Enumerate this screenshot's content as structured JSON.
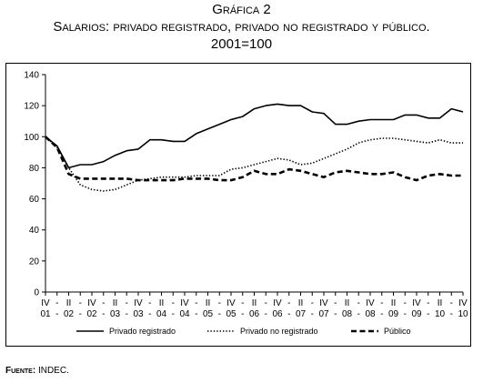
{
  "figure": {
    "title": "Gráfica 2",
    "subtitle": "Salarios: privado registrado, privado no registrado y público.",
    "base": "2001=100",
    "source_label": "Fuente:",
    "source_value": "INDEC."
  },
  "chart_data": {
    "type": "line",
    "title": "Gráfica 2",
    "subtitle": "Salarios: privado registrado, privado no registrado y público.",
    "ylim": [
      0,
      140
    ],
    "yticks": [
      0,
      20,
      40,
      60,
      80,
      100,
      120,
      140
    ],
    "grid": false,
    "legend_position": "bottom",
    "xtick_labels": [
      {
        "q": "IV",
        "y": "01"
      },
      {
        "q": "-",
        "y": "-"
      },
      {
        "q": "II",
        "y": "02"
      },
      {
        "q": "-",
        "y": "-"
      },
      {
        "q": "IV",
        "y": "02"
      },
      {
        "q": "-",
        "y": "-"
      },
      {
        "q": "II",
        "y": "03"
      },
      {
        "q": "-",
        "y": "-"
      },
      {
        "q": "IV",
        "y": "03"
      },
      {
        "q": "-",
        "y": "-"
      },
      {
        "q": "II",
        "y": "04"
      },
      {
        "q": "-",
        "y": "-"
      },
      {
        "q": "IV",
        "y": "04"
      },
      {
        "q": "-",
        "y": "-"
      },
      {
        "q": "II",
        "y": "05"
      },
      {
        "q": "-",
        "y": "-"
      },
      {
        "q": "IV",
        "y": "05"
      },
      {
        "q": "-",
        "y": "-"
      },
      {
        "q": "II",
        "y": "06"
      },
      {
        "q": "-",
        "y": "-"
      },
      {
        "q": "IV",
        "y": "06"
      },
      {
        "q": "-",
        "y": "-"
      },
      {
        "q": "II",
        "y": "07"
      },
      {
        "q": "-",
        "y": "-"
      },
      {
        "q": "IV",
        "y": "07"
      },
      {
        "q": "-",
        "y": "-"
      },
      {
        "q": "II",
        "y": "08"
      },
      {
        "q": "-",
        "y": "-"
      },
      {
        "q": "IV",
        "y": "08"
      },
      {
        "q": "-",
        "y": "-"
      },
      {
        "q": "II",
        "y": "09"
      },
      {
        "q": "-",
        "y": "-"
      },
      {
        "q": "IV",
        "y": "09"
      },
      {
        "q": "-",
        "y": "-"
      },
      {
        "q": "II",
        "y": "10"
      },
      {
        "q": "-",
        "y": "-"
      },
      {
        "q": "IV",
        "y": "10"
      }
    ],
    "series": [
      {
        "name": "Privado registrado",
        "style": "solid",
        "color": "#000000",
        "values": [
          100,
          94,
          80,
          82,
          82,
          84,
          88,
          91,
          92,
          98,
          98,
          97,
          97,
          102,
          105,
          108,
          111,
          113,
          118,
          120,
          121,
          120,
          120,
          116,
          115,
          108,
          108,
          110,
          111,
          111,
          111,
          114,
          114,
          112,
          112,
          118,
          116
        ]
      },
      {
        "name": "Privado no registrado",
        "style": "dotted",
        "color": "#000000",
        "values": [
          100,
          93,
          80,
          69,
          66,
          65,
          66,
          69,
          72,
          73,
          74,
          74,
          74,
          75,
          75,
          75,
          79,
          80,
          82,
          84,
          86,
          85,
          82,
          83,
          86,
          89,
          92,
          96,
          98,
          99,
          99,
          98,
          97,
          96,
          98,
          96,
          96
        ]
      },
      {
        "name": "Público",
        "style": "dashed",
        "color": "#000000",
        "values": [
          100,
          93,
          76,
          73,
          73,
          73,
          73,
          73,
          72,
          72,
          72,
          72,
          73,
          73,
          73,
          72,
          72,
          74,
          78,
          76,
          76,
          79,
          78,
          76,
          74,
          77,
          78,
          77,
          76,
          76,
          77,
          74,
          72,
          75,
          76,
          75,
          75
        ]
      }
    ]
  }
}
